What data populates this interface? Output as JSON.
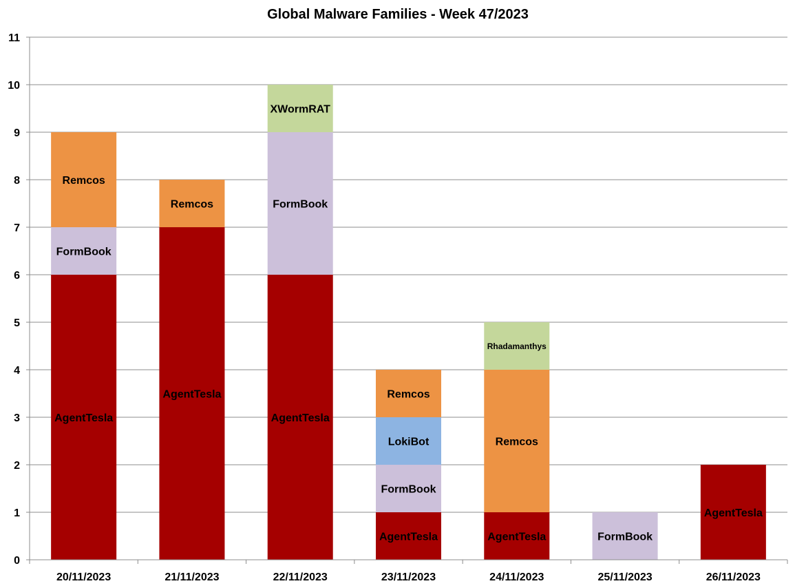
{
  "chart_data": {
    "type": "bar",
    "stacked": true,
    "title": "Global Malware Families - Week 47/2023",
    "xlabel": "",
    "ylabel": "",
    "ylim": [
      0,
      11
    ],
    "yticks": [
      "0",
      "1",
      "2",
      "3",
      "4",
      "5",
      "6",
      "7",
      "8",
      "9",
      "10",
      "11"
    ],
    "grid": true,
    "legend": "none",
    "categories": [
      "20/11/2023",
      "21/11/2023",
      "22/11/2023",
      "23/11/2023",
      "24/11/2023",
      "25/11/2023",
      "26/11/2023"
    ],
    "series": [
      {
        "name": "AgentTesla",
        "color": "#A50000",
        "values": [
          6,
          7,
          6,
          1,
          1,
          0,
          2
        ]
      },
      {
        "name": "FormBook",
        "color": "#CCC0DA",
        "values": [
          1,
          0,
          3,
          1,
          0,
          1,
          0
        ]
      },
      {
        "name": "LokiBot",
        "color": "#8DB4E2",
        "values": [
          0,
          0,
          0,
          1,
          0,
          0,
          0
        ]
      },
      {
        "name": "Remcos",
        "color": "#ED9344",
        "values": [
          2,
          1,
          0,
          1,
          3,
          0,
          0
        ]
      },
      {
        "name": "XWormRAT",
        "color": "#C4D79B",
        "values": [
          0,
          0,
          1,
          0,
          0,
          0,
          0
        ]
      },
      {
        "name": "Rhadamanthys",
        "color": "#C4D79B",
        "values": [
          0,
          0,
          0,
          0,
          1,
          0,
          0
        ]
      }
    ]
  }
}
